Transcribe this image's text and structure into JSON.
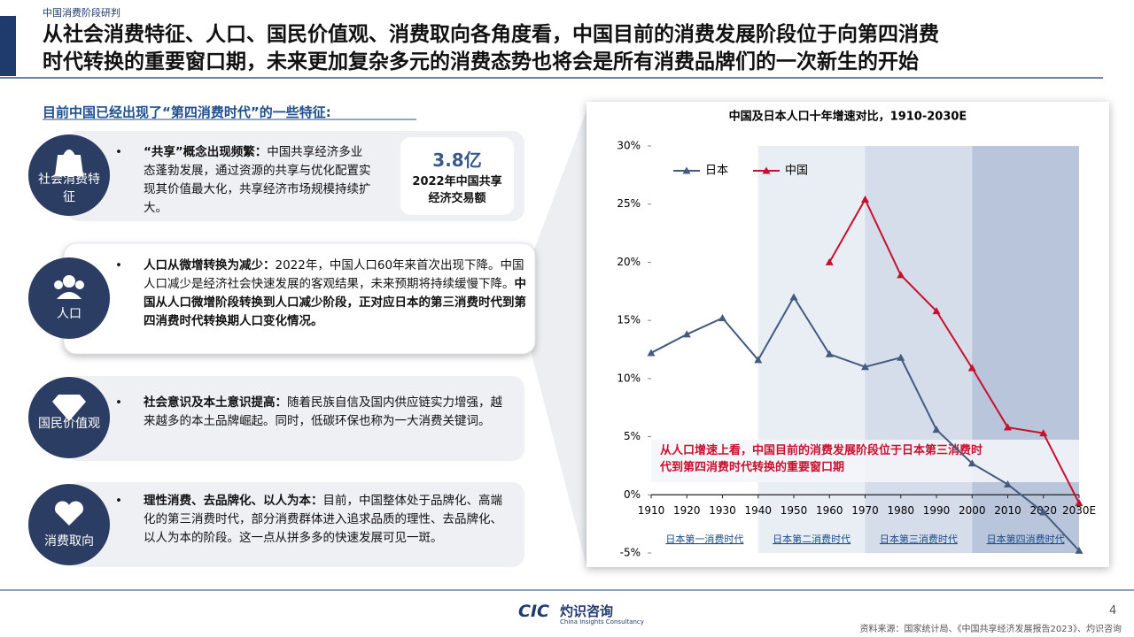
{
  "header": {
    "tag": "中国消费阶段研判",
    "title_lines": [
      "从社会消费特征、人口、国民价值观、消费取向各角度看，中国目前的消费发展阶段位于向第四消费",
      "时代转换的重要窗口期，未来更加复杂多元的消费态势也将会是所有消费品牌们的一次新生的开始"
    ]
  },
  "subheading": "目前中国已经出现了“第四消费时代”的一些特征:",
  "cards": [
    {
      "icon_label": "社会消费特征",
      "lead": "“共享”概念出现频繁：",
      "text": "中国共享经济多业态蓬勃发展，通过资源的共享与优化配置实现其价值最大化，共享经济市场规模持续扩大。",
      "stat": "3.8亿",
      "stat_caption": "2022年中国共享经济交易额"
    },
    {
      "icon_label": "人口",
      "lead": "人口从微增转换为减少：",
      "text": "2022年，中国人口60年来首次出现下降。中国人口减少是经济社会快速发展的客观结果，未来预期将持续缓慢下降。",
      "bold_text": "中国从人口微增阶段转换到人口减少阶段，正对应日本的第三消费时代到第四消费时代转换期人口变化情况。"
    },
    {
      "icon_label": "国民价值观",
      "lead": "社会意识及本土意识提高：",
      "text": "随着民族自信及国内供应链实力增强，越来越多的本土品牌崛起。同时，低碳环保也称为一大消费关键词。"
    },
    {
      "icon_label": "消费取向",
      "lead": "理性消费、去品牌化、以人为本：",
      "text": "目前，中国整体处于品牌化、高端化的第三消费时代，部分消费群体进入追求品质的理性、去品牌化、以人为本的阶段。这一点从拼多多的快速发展可见一斑。"
    }
  ],
  "chart_data": {
    "type": "line",
    "title": "中国及日本人口十年增速对比，1910-2030E",
    "x": [
      1910,
      1920,
      1930,
      1940,
      1950,
      1960,
      1970,
      1980,
      1990,
      2000,
      2010,
      2020,
      2030
    ],
    "series": [
      {
        "name": "日本",
        "color": "#435b80",
        "values": [
          12.2,
          13.8,
          15.2,
          11.6,
          17.0,
          12.1,
          11.0,
          11.8,
          5.6,
          2.7,
          0.9,
          -1.5,
          -4.8
        ]
      },
      {
        "name": "中国",
        "color": "#c8102e",
        "values": [
          null,
          null,
          null,
          null,
          null,
          20.0,
          25.4,
          18.9,
          15.8,
          10.9,
          5.8,
          5.3,
          -0.7
        ]
      }
    ],
    "xlim": [
      1910,
      2030
    ],
    "ylim": [
      -5,
      30
    ],
    "xticks": [
      1910,
      1920,
      1930,
      1940,
      1950,
      1960,
      1970,
      1980,
      1990,
      2000,
      2010,
      2020,
      {
        "value": 2030,
        "label": "2030E"
      }
    ],
    "yticks": [
      {
        "value": -5,
        "label": "-5%"
      },
      {
        "value": 0,
        "label": "0%"
      },
      {
        "value": 5,
        "label": "5%"
      },
      {
        "value": 10,
        "label": "10%"
      },
      {
        "value": 15,
        "label": "15%"
      },
      {
        "value": 20,
        "label": "20%"
      },
      {
        "value": 25,
        "label": "25%"
      },
      {
        "value": 30,
        "label": "30%"
      }
    ],
    "eras": [
      "日本第一消费时代",
      "日本第二消费时代",
      "日本第三消费时代",
      "日本第四消费时代"
    ],
    "annotation": "从人口增速上看，中国目前的消费发展阶段位于日本第三消费时代到第四消费时代转换的重要窗口期",
    "legend": "upper left"
  },
  "footer": {
    "logo": "CIC",
    "brand": "灼识咨询",
    "brand_en": "China Insights Consultancy",
    "page": "4",
    "source": "资料来源：国家统计局、《中国共享经济发展报告2023》、灼识咨询"
  }
}
